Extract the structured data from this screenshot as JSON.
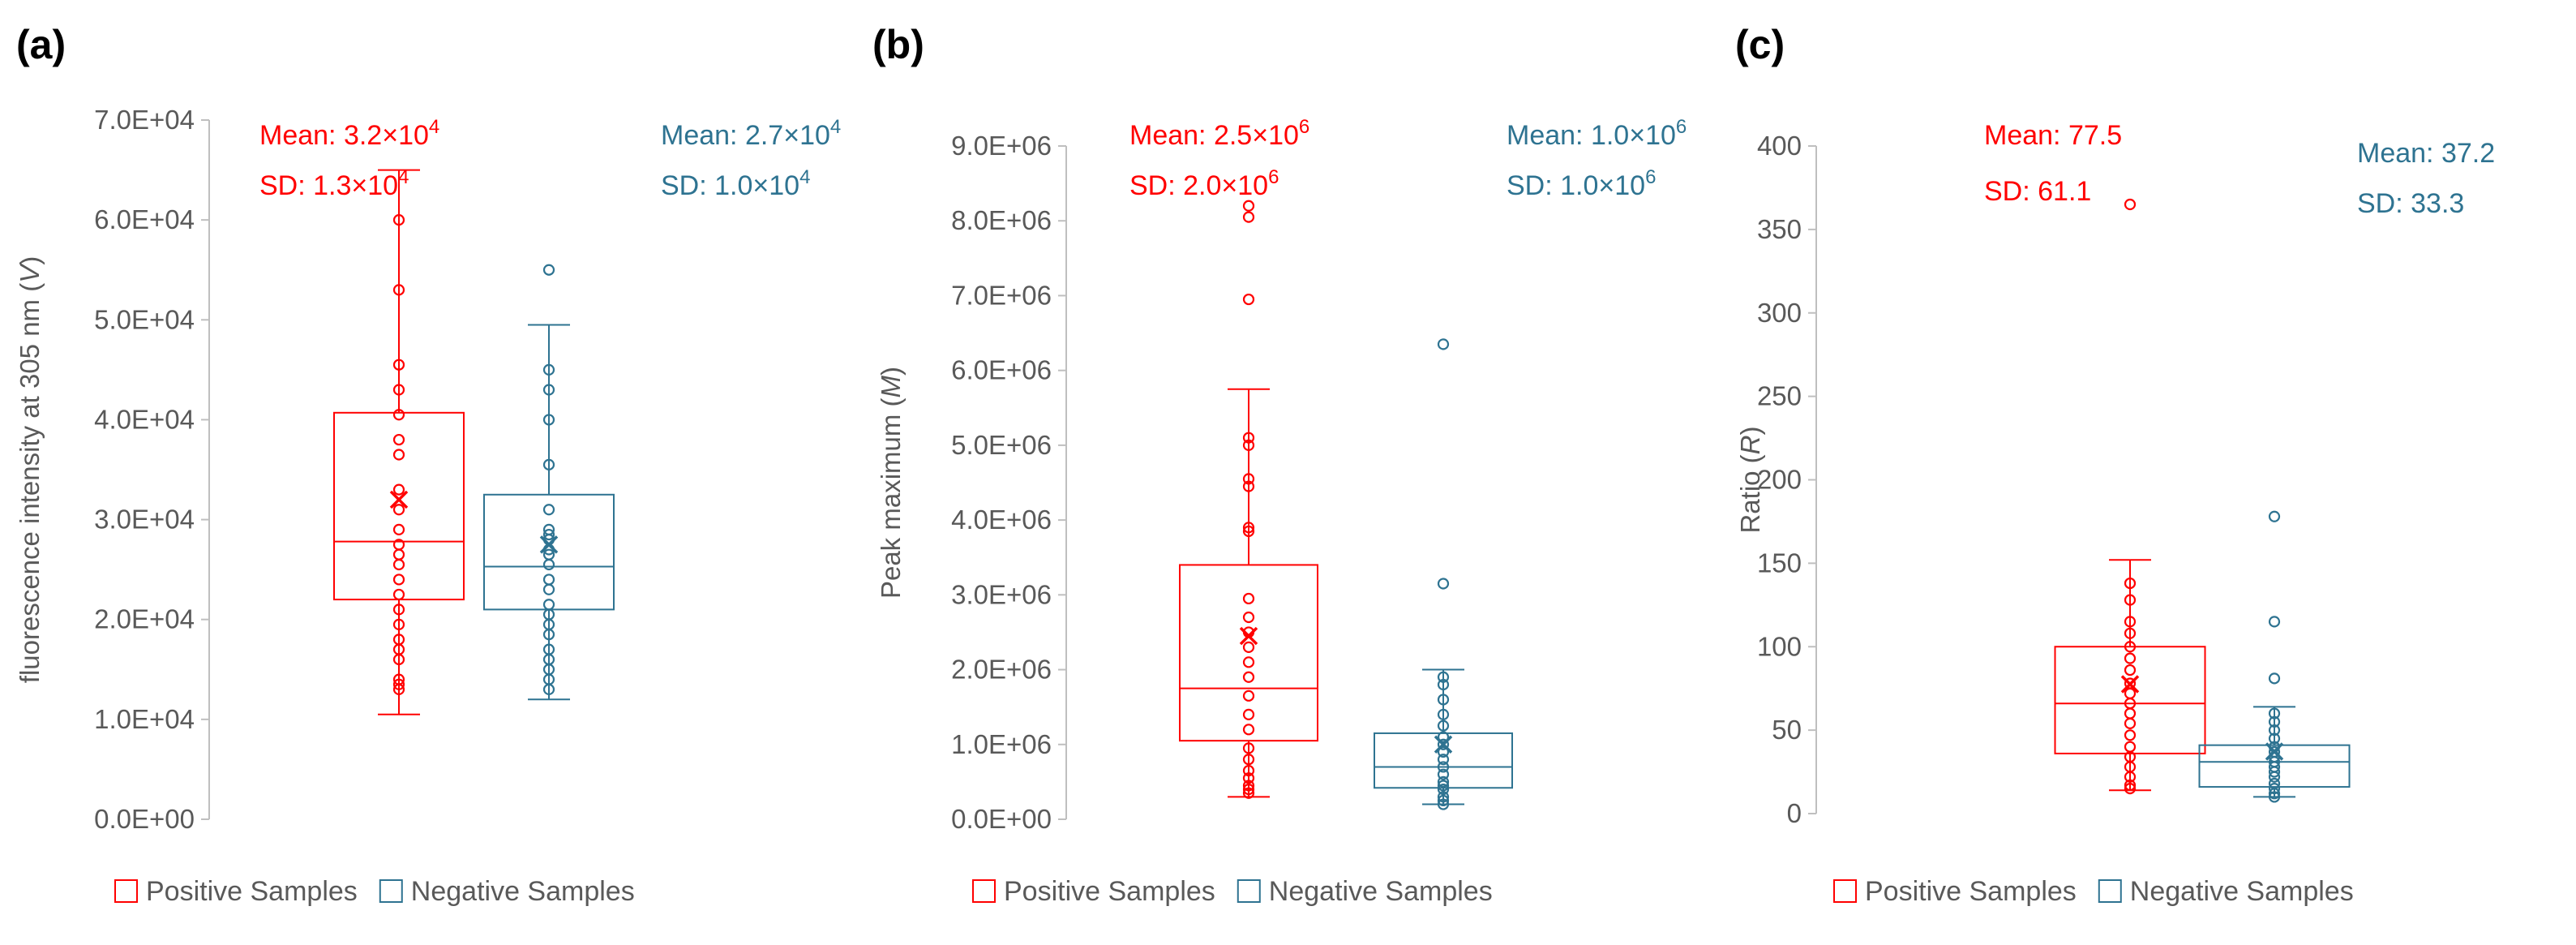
{
  "colors": {
    "positive": "#ff0000",
    "negative": "#2e7391",
    "axis": "#bfbfbf",
    "text": "#595959"
  },
  "chart_data": [
    {
      "type": "box",
      "panel": "(a)",
      "ylabel_prefix": "fluorescence intensity at 305 nm (",
      "ylabel_var": "V",
      "ylabel_suffix": ")",
      "ylim": [
        0,
        70000
      ],
      "yticks": [
        0,
        10000,
        20000,
        30000,
        40000,
        50000,
        60000,
        70000
      ],
      "yticklabels": [
        "0.0E+00",
        "1.0E+04",
        "2.0E+04",
        "3.0E+04",
        "4.0E+04",
        "5.0E+04",
        "6.0E+04",
        "7.0E+04"
      ],
      "series": [
        {
          "name": "Positive Samples",
          "color": "#ff0000",
          "stats": {
            "mean_text": "Mean: 3.2×10",
            "mean_exp": "4",
            "sd_text": "SD: 1.3×10",
            "sd_exp": "4"
          },
          "whisker_low": 10500,
          "q1": 22000,
          "median": 27800,
          "q3": 40700,
          "whisker_high": 65000,
          "mean": 32000,
          "points": [
            60000,
            53000,
            45500,
            43000,
            40500,
            38000,
            36500,
            33000,
            31000,
            29000,
            27500,
            26500,
            25500,
            24000,
            22500,
            21000,
            19500,
            18000,
            17000,
            16000,
            14000,
            13500,
            13000
          ]
        },
        {
          "name": "Negative Samples",
          "color": "#2e7391",
          "stats": {
            "mean_text": "Mean: 2.7×10",
            "mean_exp": "4",
            "sd_text": "SD: 1.0×10",
            "sd_exp": "4"
          },
          "whisker_low": 12000,
          "q1": 21000,
          "median": 25300,
          "q3": 32500,
          "whisker_high": 49500,
          "mean": 27500,
          "points": [
            55000,
            45000,
            43000,
            40000,
            35500,
            31000,
            29000,
            28500,
            28000,
            27000,
            26500,
            25500,
            24000,
            23000,
            21500,
            20500,
            19500,
            18500,
            17000,
            16000,
            15000,
            14000,
            13000
          ]
        }
      ]
    },
    {
      "type": "box",
      "panel": "(b)",
      "ylabel_prefix": "Peak maximum (",
      "ylabel_var": "M",
      "ylabel_suffix": ")",
      "ylim": [
        0,
        9000000
      ],
      "yticks": [
        0,
        1000000,
        2000000,
        3000000,
        4000000,
        5000000,
        6000000,
        7000000,
        8000000,
        9000000
      ],
      "yticklabels": [
        "0.0E+00",
        "1.0E+06",
        "2.0E+06",
        "3.0E+06",
        "4.0E+06",
        "5.0E+06",
        "6.0E+06",
        "7.0E+06",
        "8.0E+06",
        "9.0E+06"
      ],
      "series": [
        {
          "name": "Positive Samples",
          "color": "#ff0000",
          "stats": {
            "mean_text": "Mean: 2.5×10",
            "mean_exp": "6",
            "sd_text": "SD: 2.0×10",
            "sd_exp": "6"
          },
          "whisker_low": 300000,
          "q1": 1050000,
          "median": 1750000,
          "q3": 3400000,
          "whisker_high": 5750000,
          "mean": 2450000,
          "points": [
            8200000,
            8050000,
            6950000,
            5100000,
            5000000,
            4550000,
            4450000,
            3900000,
            3850000,
            2950000,
            2700000,
            2500000,
            2300000,
            2100000,
            1900000,
            1650000,
            1400000,
            1200000,
            950000,
            800000,
            650000,
            550000,
            450000,
            400000,
            350000
          ]
        },
        {
          "name": "Negative Samples",
          "color": "#2e7391",
          "stats": {
            "mean_text": "Mean: 1.0×10",
            "mean_exp": "6",
            "sd_text": "SD: 1.0×10",
            "sd_exp": "6"
          },
          "whisker_low": 200000,
          "q1": 420000,
          "median": 700000,
          "q3": 1150000,
          "whisker_high": 2000000,
          "mean": 1000000,
          "points": [
            6350000,
            3150000,
            1900000,
            1800000,
            1600000,
            1400000,
            1250000,
            1100000,
            1000000,
            900000,
            800000,
            700000,
            600000,
            500000,
            450000,
            400000,
            300000,
            250000,
            200000
          ]
        }
      ]
    },
    {
      "type": "box",
      "panel": "(c)",
      "ylabel_prefix": "Ratio (",
      "ylabel_var": "R",
      "ylabel_suffix": ")",
      "ylim": [
        0,
        400
      ],
      "yticks": [
        0,
        50,
        100,
        150,
        200,
        250,
        300,
        350,
        400
      ],
      "yticklabels": [
        "0",
        "50",
        "100",
        "150",
        "200",
        "250",
        "300",
        "350",
        "400"
      ],
      "series": [
        {
          "name": "Positive Samples",
          "color": "#ff0000",
          "stats": {
            "mean_text": "Mean: 77.5",
            "mean_exp": "",
            "sd_text": "SD: 61.1",
            "sd_exp": ""
          },
          "whisker_low": 14,
          "q1": 36,
          "median": 66,
          "q3": 100,
          "whisker_high": 152,
          "mean": 77.5,
          "points": [
            365,
            138,
            128,
            115,
            108,
            100,
            93,
            86,
            78,
            72,
            66,
            60,
            54,
            47,
            40,
            34,
            28,
            22,
            17,
            15
          ]
        },
        {
          "name": "Negative Samples",
          "color": "#2e7391",
          "stats": {
            "mean_text": "Mean: 37.2",
            "mean_exp": "",
            "sd_text": "SD: 33.3",
            "sd_exp": ""
          },
          "whisker_low": 10,
          "q1": 16,
          "median": 31,
          "q3": 41,
          "whisker_high": 64,
          "mean": 37.2,
          "points": [
            178,
            115,
            81,
            60,
            55,
            50,
            45,
            40,
            37,
            34,
            31,
            28,
            25,
            22,
            18,
            15,
            12,
            10
          ]
        }
      ]
    }
  ]
}
